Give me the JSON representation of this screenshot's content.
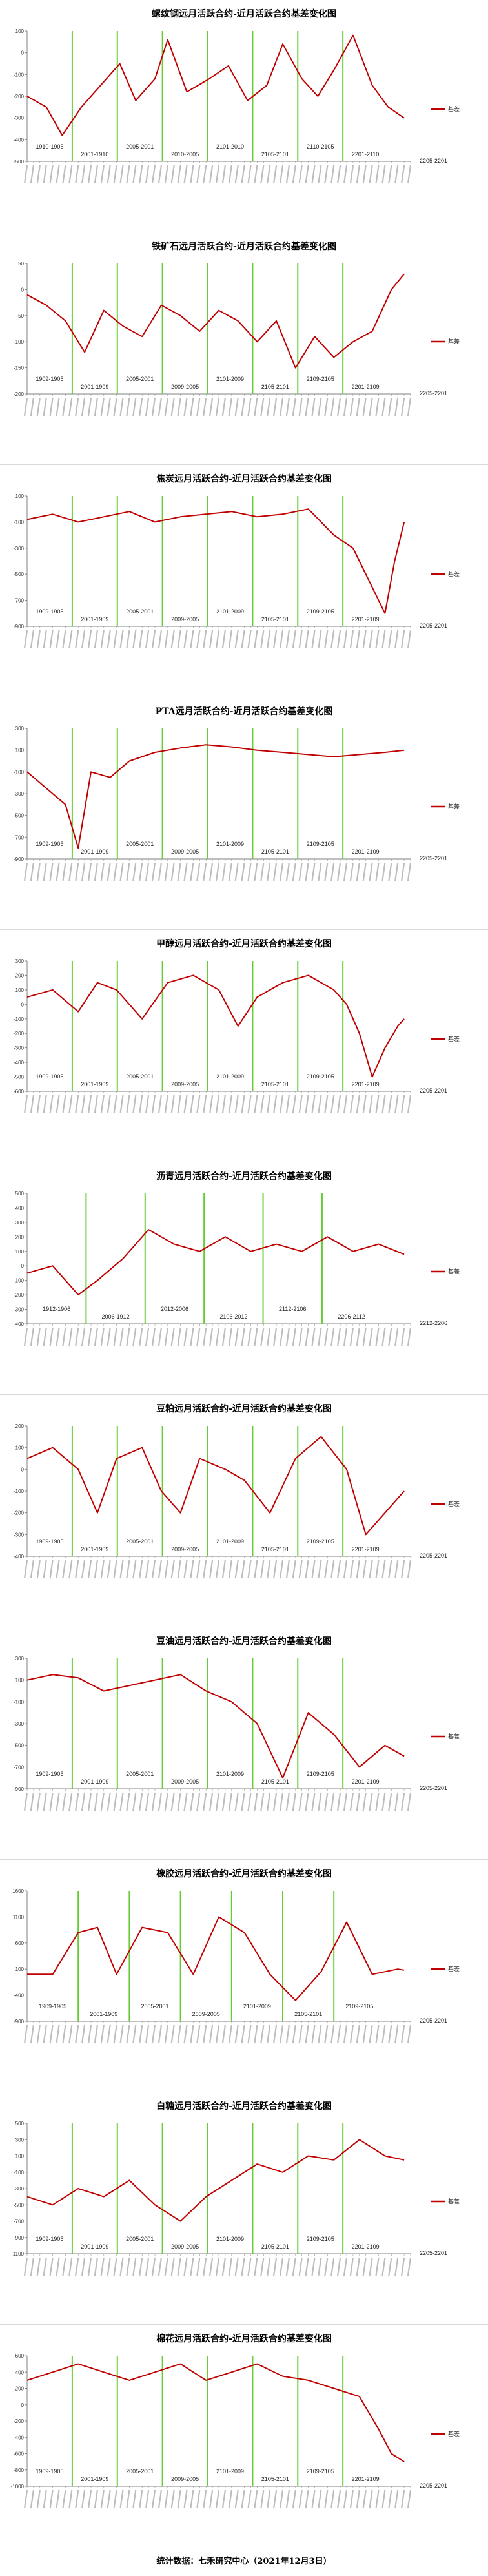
{
  "footer": "统计数据：七禾研究中心（2021年12月3日）",
  "chart_data": [
    {
      "type": "line",
      "title": "螺纹钢远月活跃合约-近月活跃合约基差变化图",
      "legend": "基差",
      "legend_position": "right",
      "color": "#c00000",
      "yticks": [
        100,
        0,
        -100,
        -200,
        -300,
        -400,
        -500
      ],
      "ylim": [
        -500,
        100
      ],
      "grid": false,
      "contract_labels": [
        "1910-1905",
        "2001-1910",
        "2005-2001",
        "2010-2005",
        "2101-2010",
        "2105-2101",
        "2110-2105",
        "2201-2110",
        "2205-2201"
      ],
      "x": [
        0,
        30,
        55,
        85,
        115,
        145,
        170,
        200,
        220,
        250,
        285,
        315,
        345,
        375,
        400,
        430,
        455,
        480,
        510,
        540,
        565,
        590
      ],
      "values": [
        -200,
        -250,
        -380,
        -250,
        -150,
        -50,
        -220,
        -120,
        60,
        -180,
        -120,
        -60,
        -220,
        -150,
        40,
        -120,
        -200,
        -80,
        80,
        -150,
        -250,
        -300
      ]
    },
    {
      "type": "line",
      "title": "铁矿石远月活跃合约-近月活跃合约基差变化图",
      "legend": "基差",
      "legend_position": "right",
      "color": "#c00000",
      "yticks": [
        50,
        0,
        -50,
        -100,
        -150,
        -200
      ],
      "ylim": [
        -200,
        50
      ],
      "grid": false,
      "contract_labels": [
        "1909-1905",
        "2001-1909",
        "2005-2001",
        "2009-2005",
        "2101-2009",
        "2105-2101",
        "2109-2105",
        "2201-2109",
        "2205-2201"
      ],
      "x": [
        0,
        30,
        60,
        90,
        120,
        150,
        180,
        210,
        240,
        270,
        300,
        330,
        360,
        390,
        420,
        450,
        480,
        510,
        540,
        570,
        590
      ],
      "values": [
        -10,
        -30,
        -60,
        -120,
        -40,
        -70,
        -90,
        -30,
        -50,
        -80,
        -40,
        -60,
        -100,
        -60,
        -150,
        -90,
        -130,
        -100,
        -80,
        0,
        30
      ]
    },
    {
      "type": "line",
      "title": "焦炭远月活跃合约-近月活跃合约基差变化图",
      "legend": "基差",
      "legend_position": "right",
      "color": "#c00000",
      "yticks": [
        100,
        -100,
        -300,
        -500,
        -700,
        -900
      ],
      "ylim": [
        -900,
        100
      ],
      "grid": false,
      "contract_labels": [
        "1909-1905",
        "2001-1909",
        "2005-2001",
        "2009-2005",
        "2101-2009",
        "2105-2101",
        "2109-2105",
        "2201-2109",
        "2205-2201"
      ],
      "x": [
        0,
        40,
        80,
        120,
        160,
        200,
        240,
        280,
        320,
        360,
        400,
        440,
        480,
        510,
        540,
        560,
        575,
        590
      ],
      "values": [
        -80,
        -40,
        -100,
        -60,
        -20,
        -100,
        -60,
        -40,
        -20,
        -60,
        -40,
        0,
        -200,
        -300,
        -600,
        -800,
        -400,
        -100
      ]
    },
    {
      "type": "line",
      "title": "PTA远月活跃合约-近月活跃合约基差变化图",
      "legend": "基差",
      "legend_position": "right",
      "color": "#c00000",
      "yticks": [
        300,
        100,
        -100,
        -300,
        -500,
        -700,
        -900
      ],
      "ylim": [
        -900,
        300
      ],
      "grid": false,
      "contract_labels": [
        "1909-1905",
        "2001-1909",
        "2005-2001",
        "2009-2005",
        "2101-2009",
        "2105-2101",
        "2109-2105",
        "2201-2109",
        "2205-2201"
      ],
      "x": [
        0,
        30,
        60,
        80,
        100,
        130,
        160,
        200,
        240,
        280,
        320,
        360,
        400,
        440,
        480,
        520,
        560,
        590
      ],
      "values": [
        -100,
        -250,
        -400,
        -800,
        -100,
        -150,
        0,
        80,
        120,
        150,
        130,
        100,
        80,
        60,
        40,
        60,
        80,
        100
      ]
    },
    {
      "type": "line",
      "title": "甲醇远月活跃合约-近月活跃合约基差变化图",
      "legend": "基差",
      "legend_position": "right",
      "color": "#c00000",
      "yticks": [
        300,
        200,
        100,
        0,
        -100,
        -200,
        -300,
        -400,
        -500,
        -600
      ],
      "ylim": [
        -600,
        300
      ],
      "grid": false,
      "contract_labels": [
        "1909-1905",
        "2001-1909",
        "2005-2001",
        "2009-2005",
        "2101-2009",
        "2105-2101",
        "2109-2105",
        "2201-2109",
        "2205-2201"
      ],
      "x": [
        0,
        40,
        80,
        110,
        140,
        180,
        220,
        260,
        300,
        330,
        360,
        400,
        440,
        480,
        500,
        520,
        540,
        560,
        580,
        590
      ],
      "values": [
        50,
        100,
        -50,
        150,
        100,
        -100,
        150,
        200,
        100,
        -150,
        50,
        150,
        200,
        100,
        0,
        -200,
        -500,
        -300,
        -150,
        -100
      ]
    },
    {
      "type": "line",
      "title": "沥青远月活跃合约-近月活跃合约基差变化图",
      "legend": "基差",
      "legend_position": "right",
      "color": "#c00000",
      "yticks": [
        500,
        400,
        300,
        200,
        100,
        0,
        -100,
        -200,
        -300,
        -400
      ],
      "ylim": [
        -400,
        500
      ],
      "grid": false,
      "contract_labels": [
        "1912-1906",
        "2006-1912",
        "2012-2006",
        "2106-2012",
        "2112-2106",
        "2206-2112",
        "2212-2206"
      ],
      "x": [
        0,
        40,
        80,
        110,
        150,
        190,
        230,
        270,
        310,
        350,
        390,
        430,
        470,
        510,
        550,
        590
      ],
      "values": [
        -50,
        0,
        -200,
        -100,
        50,
        250,
        150,
        100,
        200,
        100,
        150,
        100,
        200,
        100,
        150,
        80
      ]
    },
    {
      "type": "line",
      "title": "豆粕远月活跃合约-近月活跃合约基差变化图",
      "legend": "基差",
      "legend_position": "right",
      "color": "#c00000",
      "yticks": [
        200,
        100,
        0,
        -100,
        -200,
        -300,
        -400
      ],
      "ylim": [
        -400,
        200
      ],
      "grid": false,
      "contract_labels": [
        "1909-1905",
        "2001-1909",
        "2005-2001",
        "2009-2005",
        "2101-2009",
        "2105-2101",
        "2109-2105",
        "2201-2109",
        "2205-2201"
      ],
      "x": [
        0,
        40,
        80,
        110,
        140,
        180,
        210,
        240,
        270,
        310,
        340,
        380,
        420,
        460,
        500,
        530,
        560,
        590
      ],
      "values": [
        50,
        100,
        0,
        -200,
        50,
        100,
        -100,
        -200,
        50,
        0,
        -50,
        -200,
        50,
        150,
        0,
        -300,
        -200,
        -100
      ]
    },
    {
      "type": "line",
      "title": "豆油远月活跃合约-近月活跃合约基差变化图",
      "legend": "基差",
      "legend_position": "right",
      "color": "#c00000",
      "yticks": [
        300,
        100,
        -100,
        -300,
        -500,
        -700,
        -900
      ],
      "ylim": [
        -900,
        300
      ],
      "grid": false,
      "contract_labels": [
        "1909-1905",
        "2001-1909",
        "2005-2001",
        "2009-2005",
        "2101-2009",
        "2105-2101",
        "2109-2105",
        "2201-2109",
        "2205-2201"
      ],
      "x": [
        0,
        40,
        80,
        120,
        160,
        200,
        240,
        280,
        320,
        360,
        400,
        440,
        480,
        520,
        560,
        590
      ],
      "values": [
        100,
        150,
        120,
        0,
        50,
        100,
        150,
        0,
        -100,
        -300,
        -800,
        -200,
        -400,
        -700,
        -500,
        -600
      ]
    },
    {
      "type": "line",
      "title": "橡胶远月活跃合约-近月活跃合约基差变化图",
      "legend": "基差",
      "legend_position": "right",
      "color": "#c00000",
      "yticks": [
        1600,
        1100,
        600,
        100,
        -400,
        -900
      ],
      "ylim": [
        -900,
        1600
      ],
      "grid": false,
      "contract_labels": [
        "1909-1905",
        "2001-1909",
        "2005-2001",
        "2009-2005",
        "2101-2009",
        "2105-2101",
        "2109-2105",
        "2205-2201"
      ],
      "x": [
        0,
        40,
        80,
        110,
        140,
        180,
        220,
        260,
        300,
        340,
        380,
        420,
        460,
        500,
        540,
        580,
        590
      ],
      "values": [
        0,
        0,
        800,
        900,
        0,
        900,
        800,
        0,
        1100,
        800,
        0,
        -500,
        50,
        1000,
        0,
        100,
        80
      ]
    },
    {
      "type": "line",
      "title": "白糖远月活跃合约-近月活跃合约基差变化图",
      "legend": "基差",
      "legend_position": "right",
      "color": "#c00000",
      "yticks": [
        500,
        300,
        100,
        -100,
        -300,
        -500,
        -700,
        -900,
        -1100
      ],
      "ylim": [
        -1100,
        500
      ],
      "grid": false,
      "contract_labels": [
        "1909-1905",
        "2001-1909",
        "2005-2001",
        "2009-2005",
        "2101-2009",
        "2105-2101",
        "2109-2105",
        "2201-2109",
        "2205-2201"
      ],
      "x": [
        0,
        40,
        80,
        120,
        160,
        200,
        240,
        280,
        320,
        360,
        400,
        440,
        480,
        520,
        560,
        590
      ],
      "values": [
        -400,
        -500,
        -300,
        -400,
        -200,
        -500,
        -700,
        -400,
        -200,
        0,
        -100,
        100,
        50,
        300,
        100,
        50
      ]
    },
    {
      "type": "line",
      "title": "棉花远月活跃合约-近月活跃合约基差变化图",
      "legend": "基差",
      "legend_position": "right",
      "color": "#c00000",
      "yticks": [
        600,
        400,
        200,
        0,
        -200,
        -400,
        -600,
        -800,
        -1000
      ],
      "ylim": [
        -1000,
        600
      ],
      "grid": false,
      "contract_labels": [
        "1909-1905",
        "2001-1909",
        "2005-2001",
        "2009-2005",
        "2101-2009",
        "2105-2101",
        "2109-2105",
        "2201-2109",
        "2205-2201"
      ],
      "x": [
        0,
        40,
        80,
        120,
        160,
        200,
        240,
        280,
        320,
        360,
        400,
        440,
        480,
        520,
        550,
        570,
        590
      ],
      "values": [
        300,
        400,
        500,
        400,
        300,
        400,
        500,
        300,
        400,
        500,
        350,
        300,
        200,
        100,
        -300,
        -600,
        -700
      ]
    }
  ]
}
